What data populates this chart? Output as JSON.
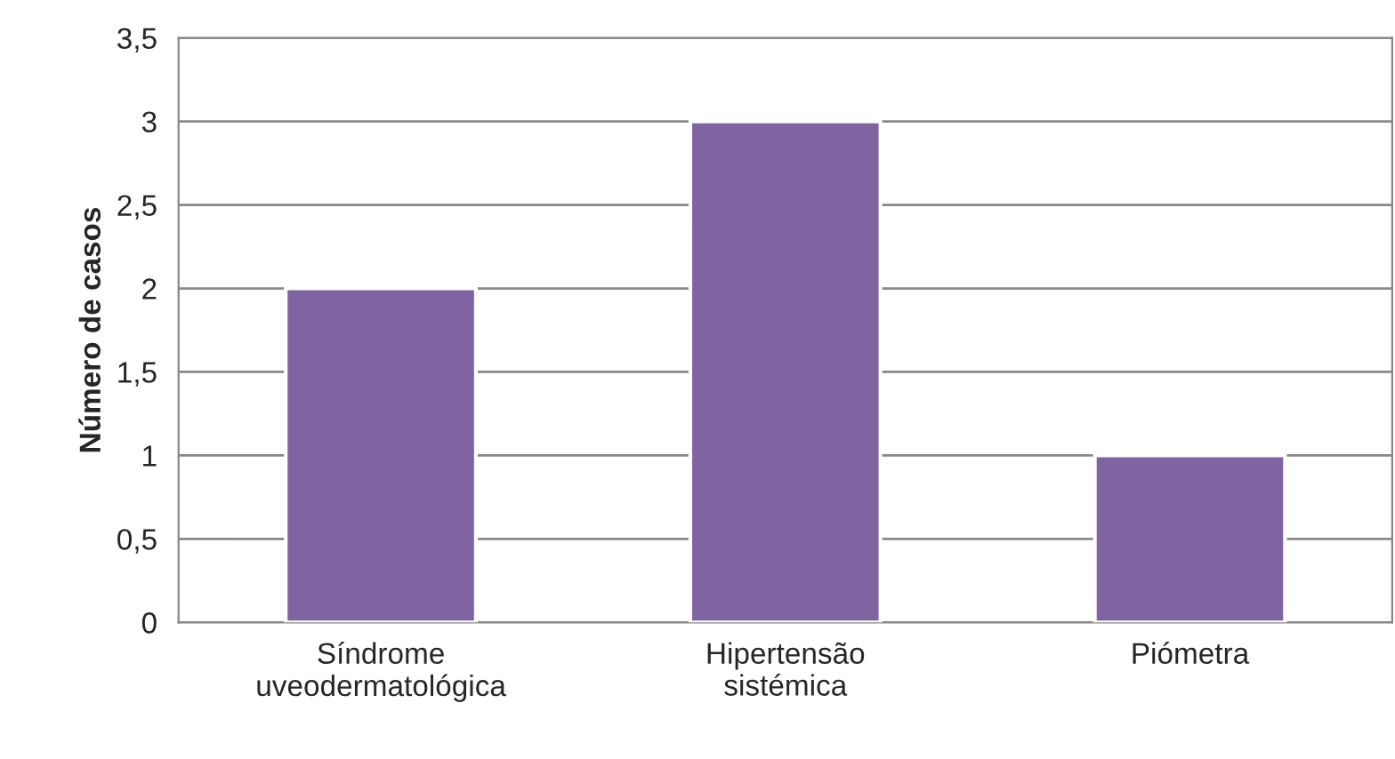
{
  "chart_data": {
    "type": "bar",
    "ylabel": "Número de casos",
    "categories": [
      "Síndrome\nuveodermatológica",
      "Hipertensão\nsistémica",
      "Piómetra"
    ],
    "values": [
      2,
      3,
      1
    ],
    "color": "#8064a2",
    "ylim": [
      0,
      3.5
    ],
    "yticks": [
      0,
      {
        "value": 0.5,
        "label": "0,5"
      },
      1,
      {
        "value": 1.5,
        "label": "1,5"
      },
      2,
      {
        "value": 2.5,
        "label": "2,5"
      },
      3,
      {
        "value": 3.5,
        "label": "3,5"
      }
    ],
    "grid": "y"
  }
}
